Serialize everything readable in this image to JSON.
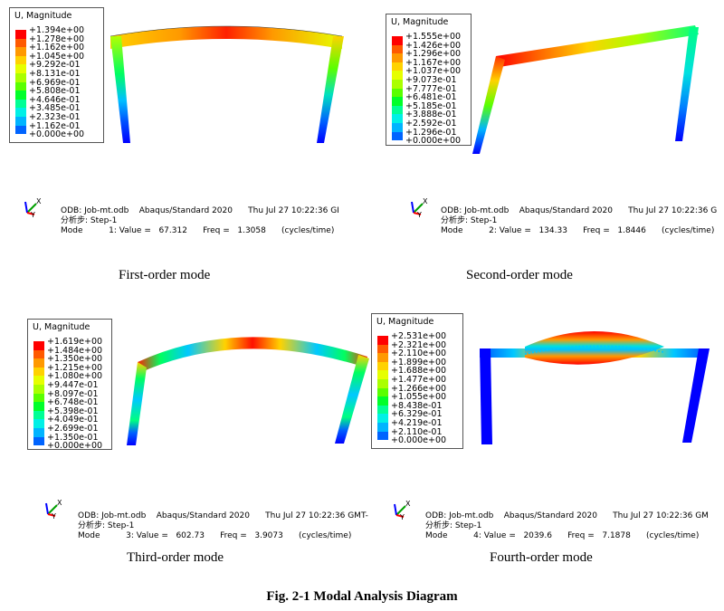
{
  "colors": [
    "#ff0000",
    "#ff5a00",
    "#ff9900",
    "#ffd200",
    "#e6ff00",
    "#aaff00",
    "#5aff00",
    "#00ff2a",
    "#00ff96",
    "#00f0e6",
    "#00b4ff",
    "#0064ff",
    "#0000ff"
  ],
  "panels": [
    {
      "legend_title": "U, Magnitude",
      "legend_values": [
        "+1.394e+00",
        "+1.278e+00",
        "+1.162e+00",
        "+1.045e+00",
        "+9.292e-01",
        "+8.131e-01",
        "+6.969e-01",
        "+5.808e-01",
        "+4.646e-01",
        "+3.485e-01",
        "+2.323e-01",
        "+1.162e-01",
        "+0.000e+00"
      ],
      "info_line1": "ODB: Job-mt.odb    Abaqus/Standard 2020      Thu Jul 27 10:22:36 GI",
      "info_line2": "分析步: Step-1",
      "info_line3": "Mode          1: Value =   67.312      Freq =   1.3058      (cycles/time)",
      "caption": "First-order mode"
    },
    {
      "legend_title": "U, Magnitude",
      "legend_values": [
        "+1.555e+00",
        "+1.426e+00",
        "+1.296e+00",
        "+1.167e+00",
        "+1.037e+00",
        "+9.073e-01",
        "+7.777e-01",
        "+6.481e-01",
        "+5.185e-01",
        "+3.888e-01",
        "+2.592e-01",
        "+1.296e-01",
        "+0.000e+00"
      ],
      "info_line1": "ODB: Job-mt.odb    Abaqus/Standard 2020      Thu Jul 27 10:22:36 G",
      "info_line2": "分析步: Step-1",
      "info_line3": "Mode          2: Value =   134.33      Freq =   1.8446      (cycles/time)",
      "caption": "Second-order mode"
    },
    {
      "legend_title": "U, Magnitude",
      "legend_values": [
        "+1.619e+00",
        "+1.484e+00",
        "+1.350e+00",
        "+1.215e+00",
        "+1.080e+00",
        "+9.447e-01",
        "+8.097e-01",
        "+6.748e-01",
        "+5.398e-01",
        "+4.049e-01",
        "+2.699e-01",
        "+1.350e-01",
        "+0.000e+00"
      ],
      "info_line1": "ODB: Job-mt.odb    Abaqus/Standard 2020      Thu Jul 27 10:22:36 GMT-",
      "info_line2": "分析步: Step-1",
      "info_line3": "Mode          3: Value =   602.73      Freq =   3.9073      (cycles/time)",
      "caption": "Third-order mode"
    },
    {
      "legend_title": "U, Magnitude",
      "legend_values": [
        "+2.531e+00",
        "+2.321e+00",
        "+2.110e+00",
        "+1.899e+00",
        "+1.688e+00",
        "+1.477e+00",
        "+1.266e+00",
        "+1.055e+00",
        "+8.438e-01",
        "+6.329e-01",
        "+4.219e-01",
        "+2.110e-01",
        "+0.000e+00"
      ],
      "info_line1": "ODB: Job-mt.odb    Abaqus/Standard 2020      Thu Jul 27 10:22:36 GM",
      "info_line2": "分析步: Step-1",
      "info_line3": "Mode          4: Value =   2039.6      Freq =   7.1878      (cycles/time)",
      "caption": "Fourth-order mode"
    }
  ],
  "figure_caption": "Fig. 2-1 Modal Analysis Diagram"
}
